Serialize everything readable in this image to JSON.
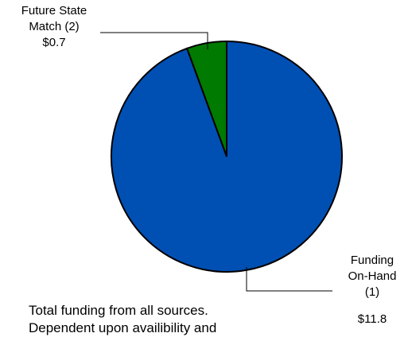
{
  "chart_data": {
    "type": "pie",
    "slices": [
      {
        "label_lines": [
          "Future State",
          "Match (2)"
        ],
        "value": 0.7,
        "value_label": "$0.7",
        "color": "#007a00"
      },
      {
        "label_lines": [
          "Funding",
          "On-Hand",
          "(1)"
        ],
        "value": 11.8,
        "value_label": "$11.8",
        "color": "#0050b4"
      }
    ],
    "stroke_color": "#000000"
  },
  "footnote": {
    "lines": [
      "Total funding from all sources.",
      "Dependent upon availibility and"
    ]
  }
}
